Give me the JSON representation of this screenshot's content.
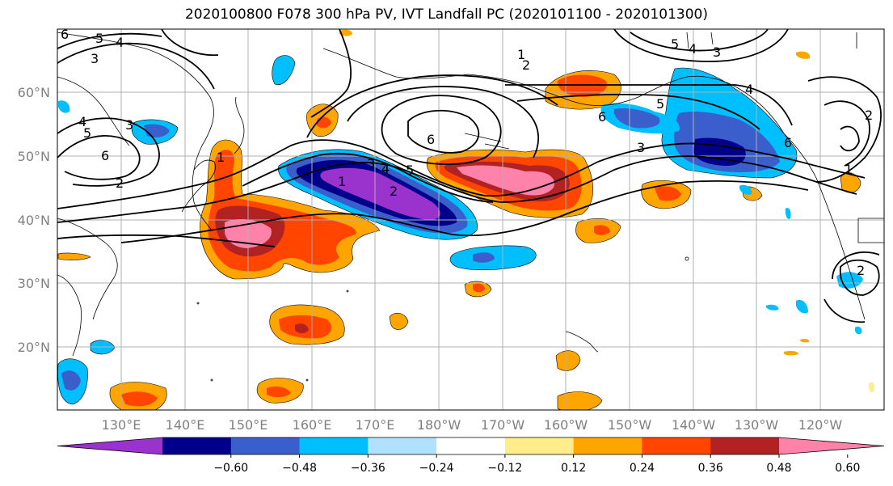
{
  "title": "2020100800 F078 300 hPa PV, IVT Landfall PC (2020101100 - 2020101300)",
  "map": {
    "lat_labels": [
      "60°N",
      "50°N",
      "40°N",
      "30°N",
      "20°N"
    ],
    "lon_labels": [
      "130°E",
      "140°E",
      "150°E",
      "160°E",
      "170°E",
      "180°W",
      "170°W",
      "160°W",
      "150°W",
      "140°W",
      "130°W",
      "120°W"
    ],
    "contour_labels": [
      "6",
      "5",
      "4",
      "3",
      "4",
      "5",
      "6",
      "3",
      "2",
      "1",
      "1",
      "2",
      "3",
      "4",
      "5",
      "6",
      "1",
      "2",
      "3",
      "4",
      "5",
      "6",
      "5",
      "4",
      "3",
      "2",
      "1",
      "2",
      "6"
    ]
  },
  "colorbar": {
    "ticks": [
      "−0.60",
      "−0.48",
      "−0.36",
      "−0.24",
      "−0.12",
      "0.12",
      "0.24",
      "0.36",
      "0.48",
      "0.60"
    ],
    "colors": [
      "#9a32cd",
      "#00008b",
      "#3a5fcd",
      "#00bfff",
      "#b0e2ff",
      "#ffffff",
      "#ffec8b",
      "#ffa500",
      "#ff4500",
      "#b22222",
      "#ff82ab"
    ]
  }
}
